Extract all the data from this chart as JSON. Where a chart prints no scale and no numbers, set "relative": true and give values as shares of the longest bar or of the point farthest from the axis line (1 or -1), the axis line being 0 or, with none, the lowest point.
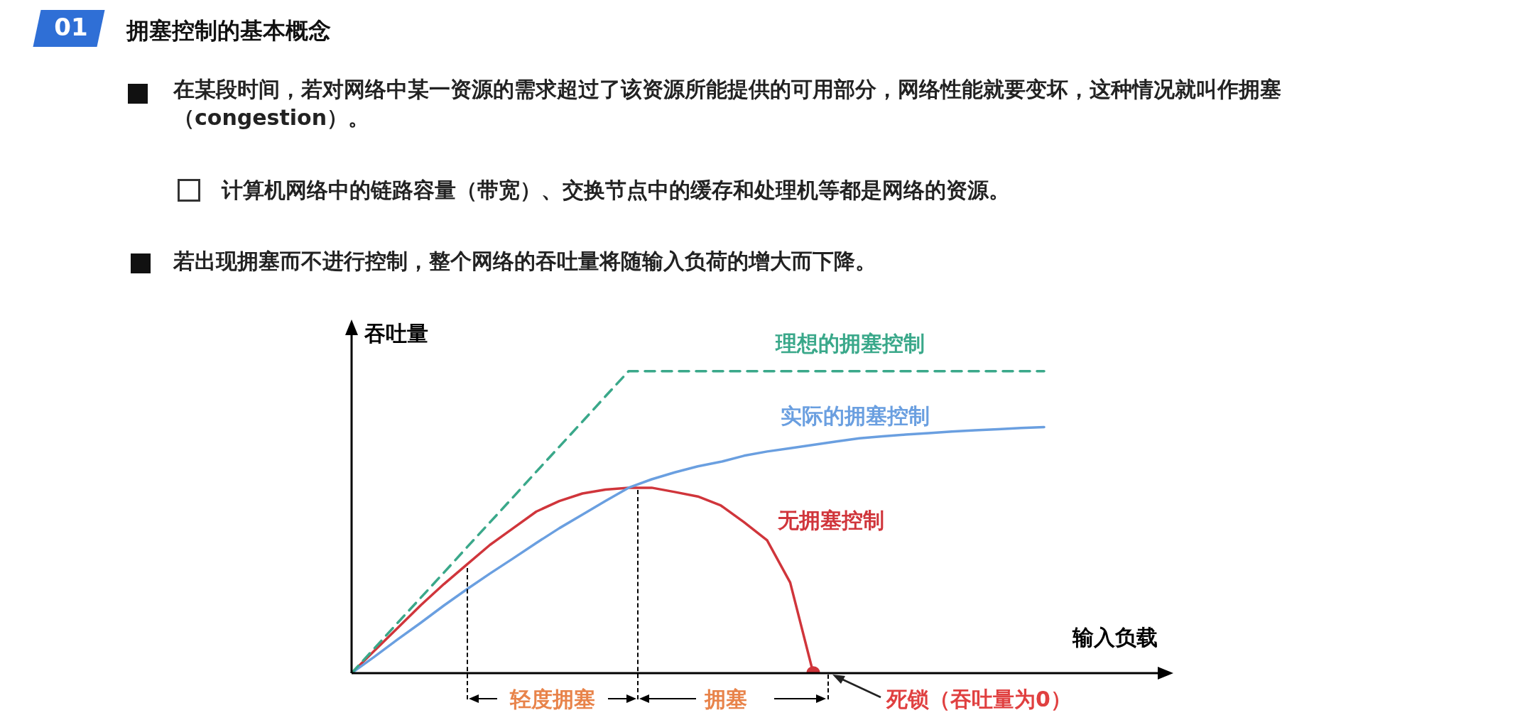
{
  "chart_data": {
    "type": "line",
    "title": "拥塞控制的基本概念",
    "xlabel": "输入负载",
    "ylabel": "吞吐量",
    "relative": true,
    "legend": false,
    "marker": "none",
    "categories": [
      null,
      null,
      null,
      null,
      null,
      null,
      null,
      null,
      null,
      null,
      null,
      null,
      null,
      null,
      null,
      null,
      null,
      null,
      null,
      null,
      null,
      null,
      null,
      null,
      null,
      null,
      null,
      null,
      null,
      null,
      null,
      null,
      null,
      null,
      null
    ],
    "series": [
      {
        "name": "理想的拥塞控制",
        "color": "#3aa88a",
        "line_style": "dashed",
        "values": [
          0,
          0.083,
          0.167,
          0.25,
          0.333,
          0.417,
          0.5,
          0.583,
          0.667,
          0.75,
          0.833,
          0.917,
          1,
          1,
          1,
          1,
          1,
          1,
          1,
          1,
          1,
          1,
          1,
          1,
          1,
          1,
          1,
          1,
          1,
          1,
          1,
          null,
          null,
          null,
          null
        ]
      },
      {
        "name": "实际的拥塞控制",
        "color": "#6a9fe0",
        "values": [
          0,
          0.055,
          0.112,
          0.167,
          0.224,
          0.278,
          0.33,
          0.38,
          0.431,
          0.48,
          0.525,
          0.57,
          0.614,
          0.642,
          0.665,
          0.685,
          0.7,
          0.72,
          0.734,
          0.745,
          0.756,
          0.767,
          0.778,
          0.784,
          0.79,
          0.795,
          0.8,
          0.804,
          0.808,
          0.812,
          0.815,
          null,
          null,
          null,
          null
        ]
      },
      {
        "name": "无拥塞控制",
        "color": "#d0353b",
        "values": [
          0,
          0.075,
          0.15,
          0.225,
          0.295,
          0.36,
          0.425,
          0.48,
          0.535,
          0.57,
          0.595,
          0.608,
          0.614,
          0.614,
          0.6,
          0.585,
          0.555,
          0.5,
          0.44,
          0.3,
          0,
          null,
          null,
          null,
          null,
          null,
          null,
          null,
          null,
          null,
          null,
          null,
          null,
          null,
          null
        ]
      }
    ],
    "annotations": [
      "01",
      "在某段时间，若对网络中某一资源的需求超过了该资源所能提供的可用部分，网络性能就要变坏，这种情况就叫作拥塞（congestion）。",
      "计算机网络中的链路容量（带宽）、交换节点中的缓存和处理机等都是网络的资源。",
      "若出现拥塞而不进行控制，整个网络的吞吐量将随输入负荷的增大而下降。",
      "轻度拥塞",
      "拥塞",
      "死锁（吞吐量为0）"
    ]
  }
}
